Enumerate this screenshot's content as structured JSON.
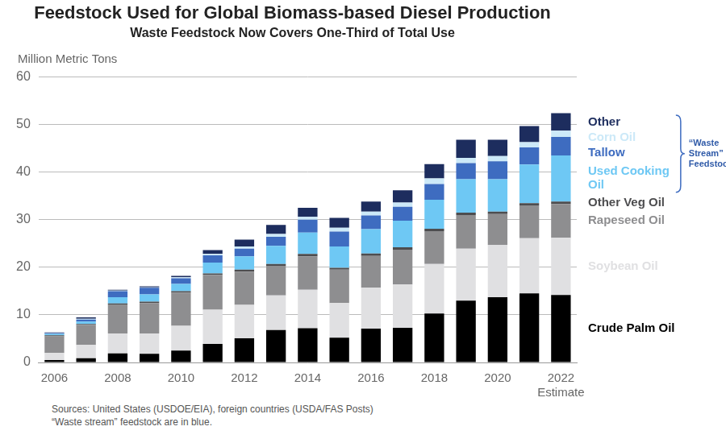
{
  "chart_data": {
    "type": "bar",
    "title": "Feedstock Used for Global Biomass-based Diesel Production",
    "subtitle": "Waste Feedstock Now Covers One-Third of Total Use",
    "y_label": "Million Metric Tons",
    "categories": [
      "2006",
      null,
      "2008",
      null,
      "2010",
      null,
      "2012",
      null,
      "2014",
      null,
      "2016",
      null,
      "2018",
      null,
      "2020",
      null,
      "2022"
    ],
    "series": [
      {
        "name": "Crude Palm Oil",
        "color": "#000000",
        "values": [
          0.5,
          0.9,
          1.9,
          1.8,
          2.5,
          3.9,
          5.1,
          6.8,
          7.2,
          5.2,
          7.1,
          7.3,
          10.3,
          13.0,
          13.7,
          14.5,
          14.2
        ]
      },
      {
        "name": "Soybean Oil",
        "color": "#e0e0e2",
        "values": [
          1.5,
          2.8,
          4.2,
          4.3,
          5.2,
          7.2,
          7.0,
          7.3,
          8.1,
          7.3,
          8.6,
          9.1,
          10.4,
          10.9,
          11.0,
          11.6,
          12.0
        ]
      },
      {
        "name": "Rapeseed Oil",
        "color": "#8e8e90",
        "values": [
          3.5,
          4.2,
          6.1,
          6.4,
          7.0,
          7.3,
          7.0,
          6.2,
          7.0,
          7.0,
          6.7,
          7.3,
          6.9,
          7.1,
          6.5,
          6.9,
          7.1
        ]
      },
      {
        "name": "Other Veg Oil",
        "color": "#4d4d4f",
        "values": [
          0.2,
          0.2,
          0.2,
          0.3,
          0.3,
          0.3,
          0.4,
          0.4,
          0.5,
          0.4,
          0.5,
          0.5,
          0.5,
          0.5,
          0.5,
          0.5,
          0.5
        ]
      },
      {
        "name": "Used Cooking Oil",
        "color": "#6ec8f4",
        "values": [
          0.3,
          0.5,
          1.3,
          1.5,
          1.5,
          2.3,
          2.8,
          3.8,
          4.5,
          4.5,
          5.1,
          5.6,
          6.1,
          7.0,
          6.8,
          8.1,
          9.7
        ]
      },
      {
        "name": "Tallow",
        "color": "#3e6cc0",
        "values": [
          0.2,
          0.4,
          1.3,
          1.4,
          1.2,
          1.5,
          1.6,
          1.9,
          2.7,
          3.1,
          2.9,
          2.9,
          3.3,
          3.4,
          3.8,
          3.6,
          3.9
        ]
      },
      {
        "name": "Corn Oil",
        "color": "#cce9f8",
        "values": [
          0.0,
          0.2,
          0.1,
          0.1,
          0.2,
          0.3,
          0.5,
          0.6,
          0.6,
          0.8,
          0.8,
          0.9,
          1.2,
          1.1,
          1.1,
          1.1,
          1.3
        ]
      },
      {
        "name": "Other",
        "color": "#1d2d5e",
        "values": [
          0.1,
          0.3,
          0.2,
          0.2,
          0.3,
          0.8,
          1.4,
          1.9,
          1.9,
          2.1,
          2.1,
          2.6,
          3.0,
          3.8,
          3.4,
          3.4,
          3.7
        ]
      }
    ],
    "stacked": true,
    "ylim": [
      0,
      60
    ],
    "yticks": [
      0,
      10,
      20,
      30,
      40,
      50,
      60
    ],
    "grid": true,
    "legend": "right",
    "annotations": [
      {
        "text": "Estimate",
        "category": "2022"
      },
      {
        "text": "“Waste Stream” Feedstock",
        "series": [
          "Other",
          "Corn Oil",
          "Tallow",
          "Used Cooking Oil"
        ]
      }
    ],
    "notes": [
      "Sources: United States (USDOE/EIA), foreign countries (USDA/FAS Posts)",
      "“Waste stream” feedstock are in blue."
    ]
  }
}
